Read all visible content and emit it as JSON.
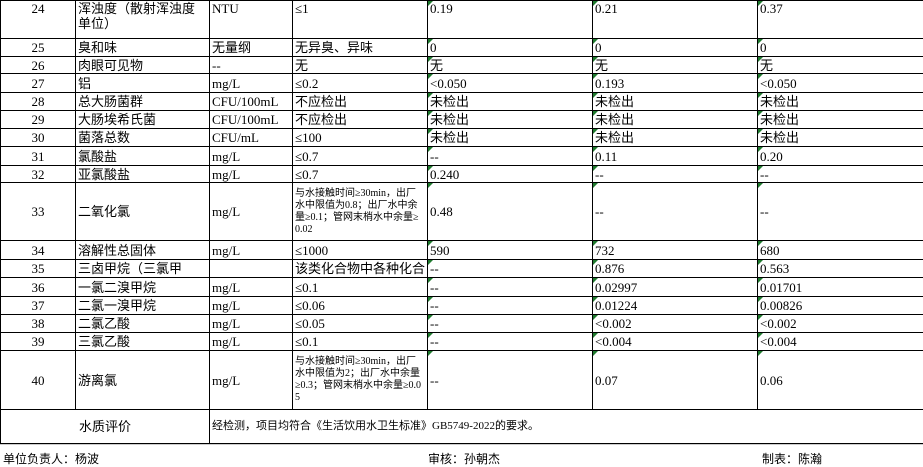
{
  "table": {
    "rows": [
      [
        "24",
        "浑浊度（散射浑浊度单位）",
        "NTU",
        "≤1",
        "0.19",
        "0.21",
        "0.37"
      ],
      [
        "25",
        "臭和味",
        "无量纲",
        "无异臭、异味",
        "0",
        "0",
        "0"
      ],
      [
        "26",
        "肉眼可见物",
        "--",
        "无",
        "无",
        "无",
        "无"
      ],
      [
        "27",
        "铝",
        "mg/L",
        "≤0.2",
        "<0.050",
        "0.193",
        "<0.050"
      ],
      [
        "28",
        "总大肠菌群",
        "CFU/100mL",
        "不应检出",
        "未检出",
        "未检出",
        "未检出"
      ],
      [
        "29",
        "大肠埃希氏菌",
        "CFU/100mL",
        "不应检出",
        "未检出",
        "未检出",
        "未检出"
      ],
      [
        "30",
        "菌落总数",
        "CFU/mL",
        "≤100",
        "未检出",
        "未检出",
        "未检出"
      ],
      [
        "31",
        "氯酸盐",
        "mg/L",
        "≤0.7",
        "--",
        "0.11",
        "0.20"
      ],
      [
        "32",
        "亚氯酸盐",
        "mg/L",
        "≤0.7",
        "0.240",
        "--",
        "--"
      ],
      [
        "33",
        "二氧化氯",
        "mg/L",
        "与水接触时间≥30min，出厂水中限值为0.8；出厂水中余量≥0.1；管网末梢水中余量≥0.02",
        "0.48",
        "--",
        "--"
      ],
      [
        "34",
        "溶解性总固体",
        "mg/L",
        "≤1000",
        "590",
        "732",
        "680"
      ],
      [
        "35",
        "三卤甲烷（三氯甲",
        null,
        "该类化合物中各种化合",
        "--",
        "0.876",
        "0.563"
      ],
      [
        "36",
        "一氯二溴甲烷",
        "mg/L",
        "≤0.1",
        "--",
        "0.02997",
        "0.01701"
      ],
      [
        "37",
        "二氯一溴甲烷",
        "mg/L",
        "≤0.06",
        "--",
        "0.01224",
        "0.00826"
      ],
      [
        "38",
        "二氯乙酸",
        "mg/L",
        "≤0.05",
        "--",
        "<0.002",
        "<0.002"
      ],
      [
        "39",
        "三氯乙酸",
        "mg/L",
        "≤0.1",
        "--",
        "<0.004",
        "<0.004"
      ],
      [
        "40",
        "游离氯",
        "mg/L",
        "与水接触时间≥30min，出厂水中限值为2；出厂水中余量≥0.3；管网末梢水中余量≥0.05",
        "--",
        "0.07",
        "0.06"
      ]
    ],
    "evaluation": {
      "label": "水质评价",
      "text": "经检测，项目均符合《生活饮用水卫生标准》GB5749-2022的要求。"
    }
  },
  "footer": {
    "responsible": "单位负责人：杨波",
    "reviewer": "审核：孙朝杰",
    "preparer": "制表：陈瀚"
  }
}
